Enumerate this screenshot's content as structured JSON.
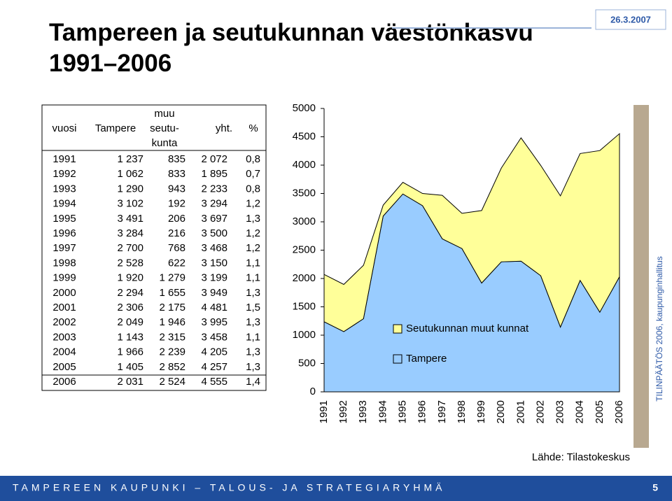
{
  "title": [
    "Tampereen ja seutukunnan väestönkasvu",
    "1991–2006"
  ],
  "date": "26.3.2007",
  "table": {
    "header": [
      "vuosi",
      "Tampere",
      [
        "muu",
        "seutu-",
        "kunta"
      ],
      "yht.",
      "%"
    ],
    "rows": [
      [
        "1991",
        "1 237",
        "835",
        "2 072",
        "0,8"
      ],
      [
        "1992",
        "1 062",
        "833",
        "1 895",
        "0,7"
      ],
      [
        "1993",
        "1 290",
        "943",
        "2 233",
        "0,8"
      ],
      [
        "1994",
        "3 102",
        "192",
        "3 294",
        "1,2"
      ],
      [
        "1995",
        "3 491",
        "206",
        "3 697",
        "1,3"
      ],
      [
        "1996",
        "3 284",
        "216",
        "3 500",
        "1,2"
      ],
      [
        "1997",
        "2 700",
        "768",
        "3 468",
        "1,2"
      ],
      [
        "1998",
        "2 528",
        "622",
        "3 150",
        "1,1"
      ],
      [
        "1999",
        "1 920",
        "1 279",
        "3 199",
        "1,1"
      ],
      [
        "2000",
        "2 294",
        "1 655",
        "3 949",
        "1,3"
      ],
      [
        "2001",
        "2 306",
        "2 175",
        "4 481",
        "1,5"
      ],
      [
        "2002",
        "2 049",
        "1 946",
        "3 995",
        "1,3"
      ],
      [
        "2003",
        "1 143",
        "2 315",
        "3 458",
        "1,1"
      ],
      [
        "2004",
        "1 966",
        "2 239",
        "4 205",
        "1,3"
      ],
      [
        "2005",
        "1 405",
        "2 852",
        "4 257",
        "1,3"
      ],
      [
        "2006",
        "2 031",
        "2 524",
        "4 555",
        "1,4"
      ]
    ]
  },
  "chart_data": {
    "type": "stacked_area",
    "categories": [
      "1991",
      "1992",
      "1993",
      "1994",
      "1995",
      "1996",
      "1997",
      "1998",
      "1999",
      "2000",
      "2001",
      "2002",
      "2003",
      "2004",
      "2005",
      "2006"
    ],
    "series": [
      {
        "name": "Tampere",
        "color": "#99ccff",
        "values": [
          1237,
          1062,
          1290,
          3102,
          3491,
          3284,
          2700,
          2528,
          1920,
          2294,
          2306,
          2049,
          1143,
          1966,
          1405,
          2031
        ]
      },
      {
        "name": "Seutukunnan muut kunnat",
        "color": "#ffff99",
        "values": [
          835,
          833,
          943,
          192,
          206,
          216,
          768,
          622,
          1279,
          1655,
          2175,
          1946,
          2315,
          2239,
          2852,
          2524
        ]
      }
    ],
    "ylim": [
      0,
      5000
    ],
    "yticks": [
      0,
      500,
      1000,
      1500,
      2000,
      2500,
      3000,
      3500,
      4000,
      4500,
      5000
    ]
  },
  "source": "Lähde: Tilastokeskus",
  "side_text": "TILINPÄÄTÖS 2006, kaupunginhallitus",
  "footer": "TAMPEREEN KAUPUNKI – TALOUS- JA STRATEGIARYHMÄ",
  "page_number": "5"
}
